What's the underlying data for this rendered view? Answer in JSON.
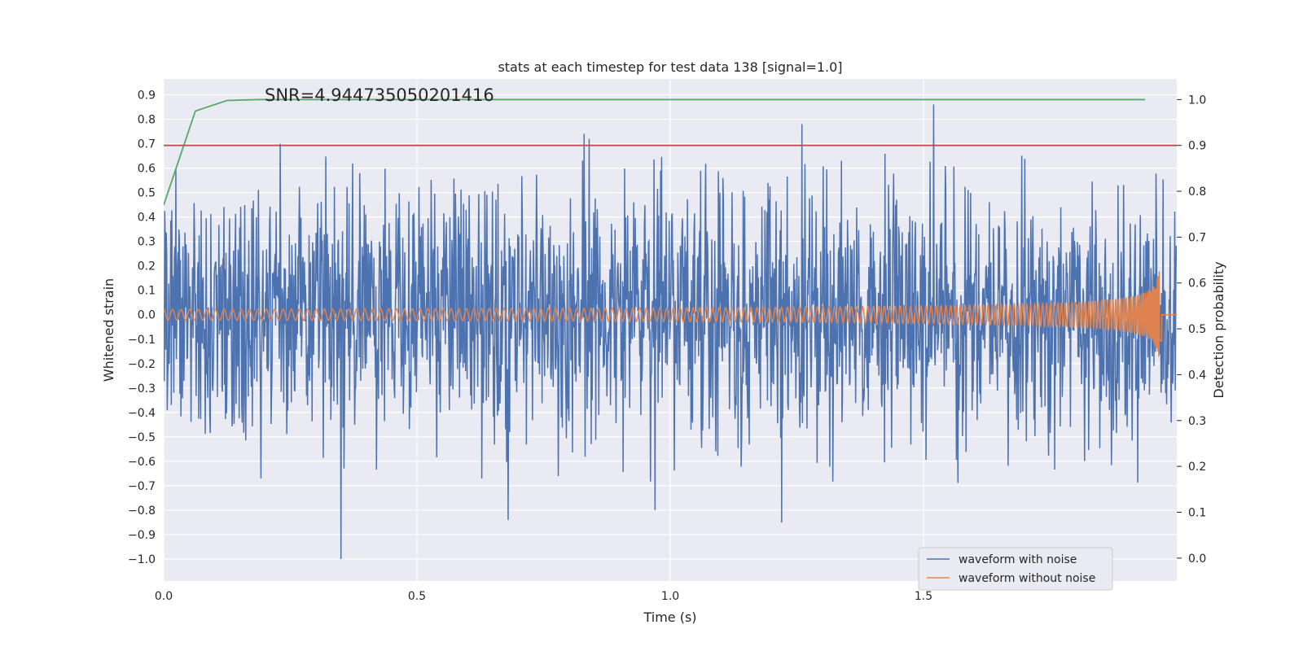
{
  "chart_data": {
    "type": "line",
    "title": "stats at each timestep for test data 138 [signal=1.0]",
    "xlabel": "Time (s)",
    "ylabel": "Whitened strain",
    "y2label": "Detection probability",
    "annotation": "SNR=4.944735050201416",
    "xlim": [
      0.0,
      2.0
    ],
    "ylim": [
      -1.09,
      0.965
    ],
    "y2lim": [
      -0.05,
      1.045
    ],
    "xticks": [
      "0.0",
      "0.5",
      "1.0",
      "1.5"
    ],
    "yticks": [
      "0.9",
      "0.8",
      "0.7",
      "0.6",
      "0.5",
      "0.4",
      "0.3",
      "0.2",
      "0.1",
      "0.0",
      "−0.1",
      "−0.2",
      "−0.3",
      "−0.4",
      "−0.5",
      "−0.6",
      "−0.7",
      "−0.8",
      "−0.9",
      "−1.0"
    ],
    "y2ticks": [
      "1.0",
      "0.9",
      "0.8",
      "0.7",
      "0.6",
      "0.5",
      "0.4",
      "0.3",
      "0.2",
      "0.1",
      "0.0"
    ],
    "grid": true,
    "legend_position": "lower right",
    "colors": {
      "waveform_with_noise": "#4c72b0",
      "waveform_without_noise": "#dd8452",
      "detection_probability": "#55a868",
      "threshold": "#c44e52",
      "plot_bg": "#eaeaf2",
      "grid": "#ffffff"
    },
    "series": [
      {
        "name": "waveform with noise",
        "axis": "left",
        "description_values": "noisy whitened strain spanning approx -1.0 to 0.86",
        "notable_peaks": [
          {
            "x": 0.23,
            "y": 0.7
          },
          {
            "x": 0.83,
            "y": 0.74
          },
          {
            "x": 0.84,
            "y": 0.72
          },
          {
            "x": 1.26,
            "y": 0.78
          },
          {
            "x": 1.52,
            "y": 0.86
          },
          {
            "x": 0.35,
            "y": -1.0
          },
          {
            "x": 0.68,
            "y": -0.84
          },
          {
            "x": 1.22,
            "y": -0.85
          },
          {
            "x": 0.97,
            "y": -0.8
          }
        ]
      },
      {
        "name": "waveform without noise",
        "axis": "left",
        "description_values": "chirp signal with amplitude growing from ~0.02 to ~0.12 and frequency increasing toward t=1.97"
      },
      {
        "axis": "right",
        "x": [
          0.0,
          0.0625,
          0.125,
          0.1875,
          0.25,
          0.5,
          0.75,
          1.0,
          1.25,
          1.5,
          1.75,
          1.9375
        ],
        "values": [
          0.77,
          0.975,
          0.998,
          1.0,
          1.0,
          1.0,
          1.0,
          1.0,
          1.0,
          1.0,
          1.0,
          1.0
        ]
      },
      {
        "axis": "right",
        "x": [
          0.0,
          2.0
        ],
        "values": [
          0.9,
          0.9
        ]
      }
    ]
  }
}
